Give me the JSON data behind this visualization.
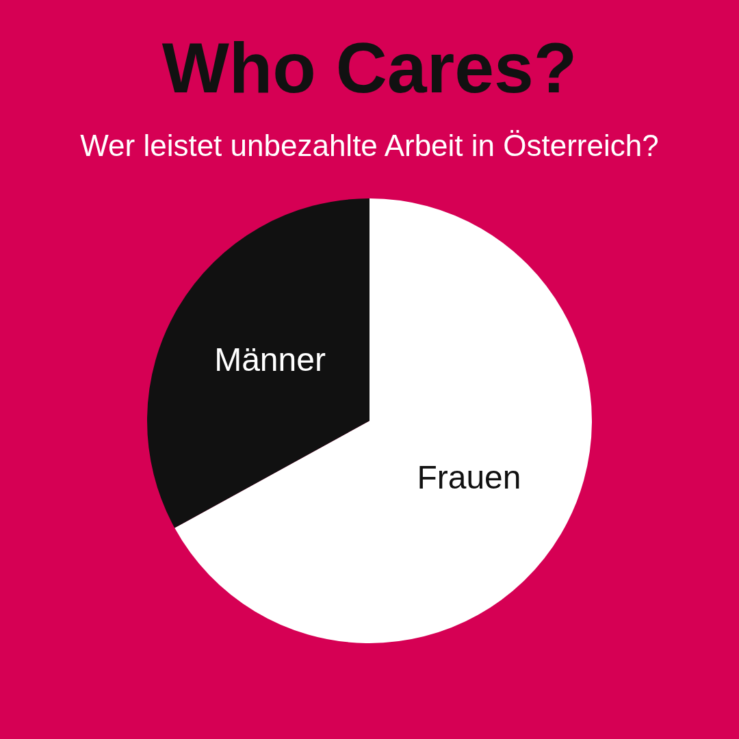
{
  "chart_data": {
    "type": "pie",
    "title": "Who Cares?",
    "subtitle": "Wer leistet unbezahlte Arbeit in Österreich?",
    "categories": [
      "Frauen",
      "Männer"
    ],
    "values": [
      67,
      33
    ],
    "colors": [
      "#ffffff",
      "#111111"
    ],
    "legend": false
  }
}
